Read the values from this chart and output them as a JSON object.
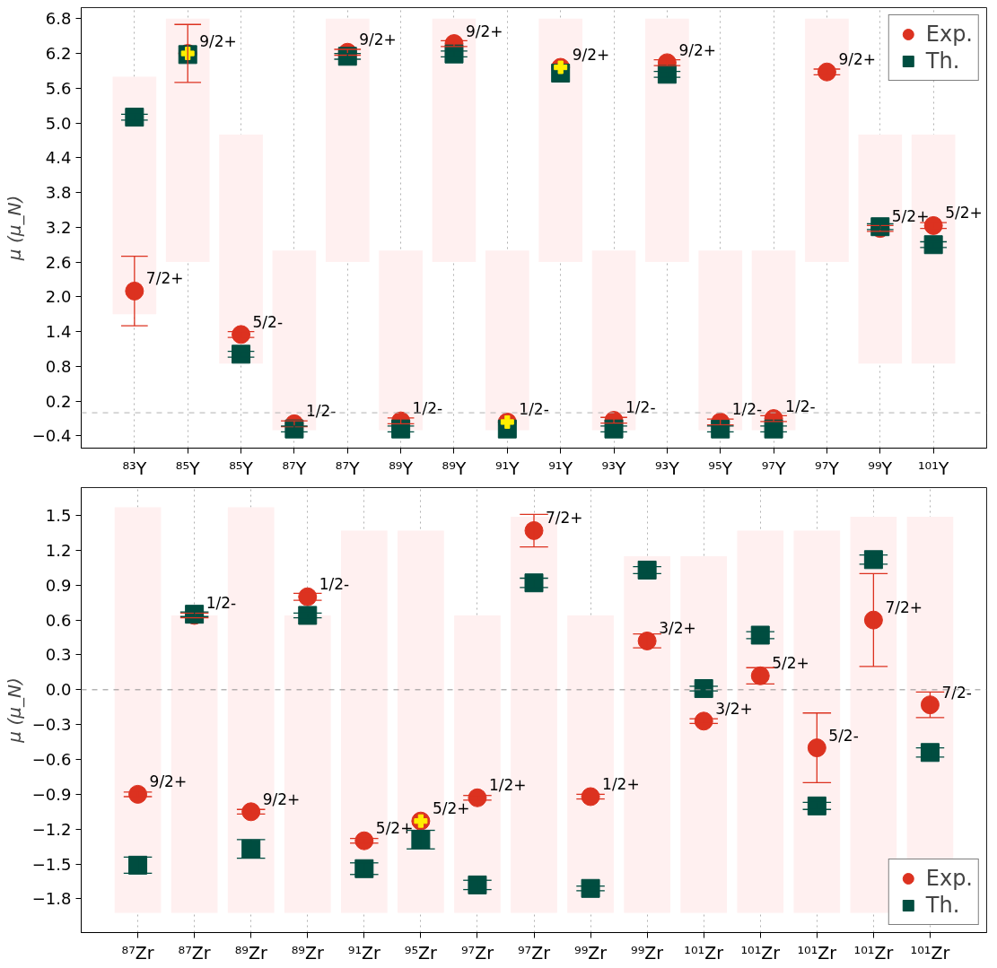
{
  "chart_data": [
    {
      "type": "scatter",
      "ylabel": "μ (μ_N)",
      "categories": [
        "⁸³Y",
        "⁸⁵Y",
        "⁸⁵Y",
        "⁸⁷Y",
        "⁸⁷Y",
        "⁸⁹Y",
        "⁸⁹Y",
        "⁹¹Y",
        "⁹¹Y",
        "⁹³Y",
        "⁹³Y",
        "⁹⁵Y",
        "⁹⁷Y",
        "⁹⁷Y",
        "⁹⁹Y",
        "¹⁰¹Y"
      ],
      "ylim": [
        -0.61,
        6.99
      ],
      "yticks": [
        {
          "value": -0.4,
          "label": "−0.4"
        },
        {
          "value": 0.2,
          "label": "0.2"
        },
        {
          "value": 0.8,
          "label": "0.8"
        },
        {
          "value": 1.4,
          "label": "1.4"
        },
        {
          "value": 2.0,
          "label": "2.0"
        },
        {
          "value": 2.6,
          "label": "2.6"
        },
        {
          "value": 3.2,
          "label": "3.2"
        },
        {
          "value": 3.8,
          "label": "3.8"
        },
        {
          "value": 4.4,
          "label": "4.4"
        },
        {
          "value": 5.0,
          "label": "5.0"
        },
        {
          "value": 5.6,
          "label": "5.6"
        },
        {
          "value": 6.2,
          "label": "6.2"
        },
        {
          "value": 6.8,
          "label": "6.8"
        }
      ],
      "grid": "x",
      "legend": "top right",
      "ref_lines": [
        {
          "axis": "y",
          "value": 0,
          "color": "#b0b0b0",
          "line_style": "dashed"
        }
      ],
      "series": [
        {
          "type": "bar",
          "color": "#fff0f0",
          "base": [
            1.7,
            2.6,
            0.85,
            -0.3,
            2.6,
            -0.3,
            2.6,
            -0.3,
            2.6,
            -0.3,
            2.6,
            -0.3,
            -0.3,
            2.6,
            0.85,
            0.85
          ],
          "values": [
            4.1,
            4.2,
            3.95,
            3.1,
            4.2,
            3.1,
            4.2,
            3.1,
            4.2,
            3.1,
            4.2,
            3.1,
            3.1,
            4.2,
            3.95,
            3.95
          ]
        },
        {
          "name": "Exp.",
          "color": "#dc3220",
          "marker": "circle",
          "values": [
            2.1,
            6.2,
            1.35,
            -0.19,
            6.22,
            -0.14,
            6.37,
            -0.16,
            5.96,
            -0.13,
            6.04,
            -0.16,
            -0.1,
            5.88,
            3.18,
            3.23
          ],
          "errors": [
            0.6,
            0.5,
            0.05,
            0.05,
            0.05,
            0.05,
            0.05,
            null,
            null,
            0.05,
            0.05,
            0.05,
            0.05,
            0.05,
            0.05,
            0.05
          ],
          "value_labels": [
            "7/2+",
            "9/2+",
            "5/2-",
            "1/2-",
            "9/2+",
            "1/2-",
            "9/2+",
            "1/2-",
            "9/2+",
            "1/2-",
            "9/2+",
            "1/2-",
            "1/2-",
            "9/2+",
            "5/2+",
            "5/2+"
          ]
        },
        {
          "name": "Th.",
          "color": "#004d40",
          "marker": "square",
          "values": [
            5.1,
            6.18,
            1.01,
            -0.28,
            6.15,
            -0.28,
            6.19,
            -0.28,
            5.86,
            -0.28,
            5.84,
            -0.28,
            -0.28,
            null,
            3.21,
            2.9
          ],
          "errors": [
            0.05,
            null,
            0.05,
            0.05,
            0.05,
            0.05,
            0.05,
            null,
            null,
            0.05,
            0.05,
            0.05,
            0.05,
            null,
            0.05,
            0.05
          ]
        },
        {
          "color": "#ffee00",
          "marker": "cross",
          "values": [
            null,
            6.2,
            null,
            null,
            null,
            null,
            null,
            -0.16,
            5.96,
            null,
            null,
            null,
            null,
            null,
            null,
            null
          ]
        }
      ]
    },
    {
      "type": "scatter",
      "ylabel": "μ (μ_N)",
      "categories": [
        "⁸⁷Zr",
        "⁸⁷Zr",
        "⁸⁹Zr",
        "⁸⁹Zr",
        "⁹¹Zr",
        "⁹⁵Zr",
        "⁹⁷Zr",
        "⁹⁷Zr",
        "⁹⁹Zr",
        "⁹⁹Zr",
        "¹⁰¹Zr",
        "¹⁰¹Zr",
        "¹⁰¹Zr",
        "¹⁰¹Zr",
        "¹⁰¹Zr"
      ],
      "ylim": [
        -2.09,
        1.74
      ],
      "yticks": [
        {
          "value": -1.8,
          "label": "−1.8"
        },
        {
          "value": -1.5,
          "label": "−1.5"
        },
        {
          "value": -1.2,
          "label": "−1.2"
        },
        {
          "value": -0.9,
          "label": "−0.9"
        },
        {
          "value": -0.6,
          "label": "−0.6"
        },
        {
          "value": -0.3,
          "label": "−0.3"
        },
        {
          "value": 0.0,
          "label": "0.0"
        },
        {
          "value": 0.3,
          "label": "0.3"
        },
        {
          "value": 0.6,
          "label": "0.6"
        },
        {
          "value": 0.9,
          "label": "0.9"
        },
        {
          "value": 1.2,
          "label": "1.2"
        },
        {
          "value": 1.5,
          "label": "1.5"
        }
      ],
      "grid": "x",
      "legend": "bottom right",
      "ref_lines": [
        {
          "axis": "y",
          "value": 0,
          "color": "#909090",
          "line_style": "dashed"
        }
      ],
      "series": [
        {
          "type": "bar",
          "color": "#fff0f0",
          "base": [
            -1.92,
            -1.92,
            -1.92,
            -1.92,
            -1.92,
            -1.92,
            -1.92,
            -1.92,
            -1.92,
            -1.92,
            -1.92,
            -1.92,
            -1.92,
            -1.92,
            -1.92
          ],
          "values": [
            3.49,
            2.56,
            3.49,
            2.56,
            3.29,
            3.29,
            2.56,
            3.41,
            2.56,
            3.07,
            3.07,
            3.29,
            3.29,
            3.41,
            3.41
          ]
        },
        {
          "name": "Exp.",
          "color": "#dc3220",
          "marker": "circle",
          "values": [
            -0.9,
            0.64,
            -1.05,
            0.8,
            -1.3,
            -1.13,
            -0.93,
            1.37,
            -0.92,
            0.42,
            -0.27,
            0.12,
            -0.5,
            0.6,
            -0.13
          ],
          "errors": [
            0.02,
            0.02,
            0.02,
            0.03,
            0.02,
            null,
            0.02,
            0.14,
            0.02,
            0.06,
            0.02,
            0.07,
            0.3,
            0.4,
            0.11
          ],
          "value_labels": [
            "9/2+",
            "1/2-",
            "9/2+",
            "1/2-",
            "5/2+",
            "5/2+",
            "1/2+",
            "7/2+",
            "1/2+",
            "3/2+",
            "3/2+",
            "5/2+",
            "5/2-",
            "7/2+",
            "7/2-"
          ]
        },
        {
          "name": "Th.",
          "color": "#004d40",
          "marker": "square",
          "values": [
            -1.51,
            0.65,
            -1.37,
            0.64,
            -1.54,
            -1.29,
            -1.68,
            0.92,
            -1.71,
            1.03,
            0.01,
            0.47,
            -1.0,
            1.12,
            -0.54
          ],
          "errors": [
            0.07,
            0.02,
            0.08,
            0.02,
            0.05,
            0.08,
            0.04,
            0.04,
            0.02,
            0.03,
            0.02,
            0.03,
            0.03,
            0.04,
            0.04
          ]
        },
        {
          "color": "#ffee00",
          "marker": "cross",
          "values": [
            null,
            null,
            null,
            null,
            null,
            -1.13,
            null,
            null,
            null,
            null,
            null,
            null,
            null,
            null,
            null
          ]
        }
      ]
    }
  ]
}
